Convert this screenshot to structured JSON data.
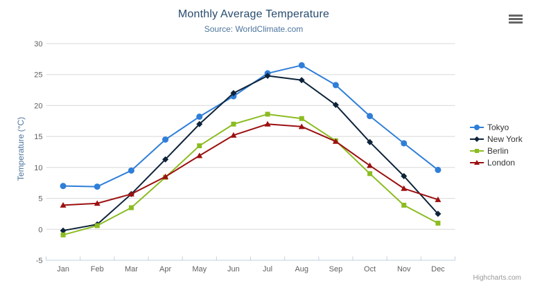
{
  "chart_data": {
    "type": "line",
    "title": "Monthly Average Temperature",
    "subtitle": "Source: WorldClimate.com",
    "xlabel": "",
    "ylabel": "Temperature (°C)",
    "categories": [
      "Jan",
      "Feb",
      "Mar",
      "Apr",
      "May",
      "Jun",
      "Jul",
      "Aug",
      "Sep",
      "Oct",
      "Nov",
      "Dec"
    ],
    "ylim": [
      -5,
      30
    ],
    "ytick_interval": 5,
    "grid": true,
    "legend_position": "right",
    "series": [
      {
        "name": "Tokyo",
        "color": "#2f7ed8",
        "marker": "circle",
        "values": [
          7.0,
          6.9,
          9.5,
          14.5,
          18.2,
          21.5,
          25.2,
          26.5,
          23.3,
          18.3,
          13.9,
          9.6
        ]
      },
      {
        "name": "New York",
        "color": "#0d233a",
        "marker": "diamond",
        "values": [
          -0.2,
          0.8,
          5.7,
          11.3,
          17.0,
          22.0,
          24.8,
          24.1,
          20.1,
          14.1,
          8.6,
          2.5
        ]
      },
      {
        "name": "Berlin",
        "color": "#8bbc21",
        "marker": "square",
        "values": [
          -0.9,
          0.6,
          3.5,
          8.4,
          13.5,
          17.0,
          18.6,
          17.9,
          14.3,
          9.0,
          3.9,
          1.0
        ]
      },
      {
        "name": "London",
        "color": "#9c1010",
        "marker": "triangle",
        "values": [
          3.9,
          4.2,
          5.7,
          8.5,
          11.9,
          15.2,
          17.0,
          16.6,
          14.2,
          10.3,
          6.6,
          4.8
        ]
      }
    ]
  },
  "credits": {
    "text": "Highcharts.com"
  },
  "theme": {
    "title_color": "#274b6d",
    "subtitle_color": "#4d759e",
    "axis_title_color": "#4d759e",
    "axis_label_color": "#606060",
    "grid_color": "#d8d8d8",
    "axis_line_color": "#c0d0e0",
    "legend_text_color": "#333333",
    "credit_color": "#999999",
    "menu_icon_color": "#666666"
  }
}
